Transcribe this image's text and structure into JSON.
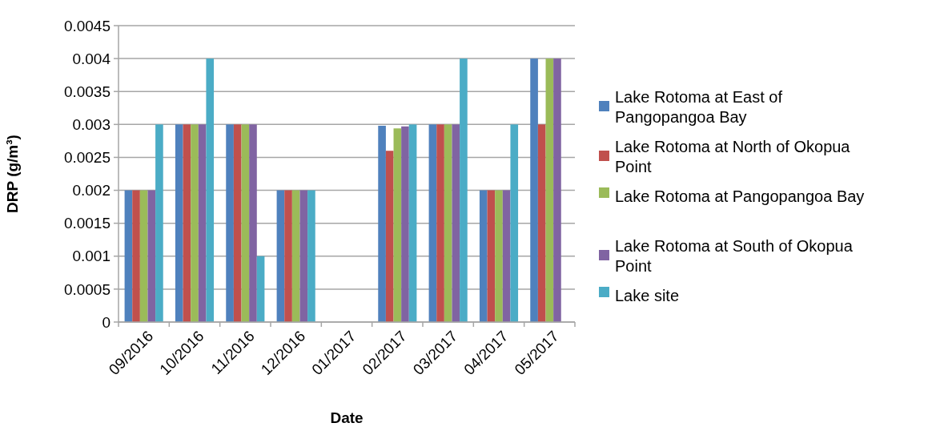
{
  "chart_data": {
    "type": "bar",
    "xlabel": "Date",
    "ylabel": "DRP (g/m³)",
    "categories": [
      "09/2016",
      "10/2016",
      "11/2016",
      "12/2016",
      "01/2017",
      "02/2017",
      "03/2017",
      "04/2017",
      "05/2017"
    ],
    "series": [
      {
        "name": "Lake Rotoma at East of Pangopangoa Bay",
        "color": "#4f81bd",
        "values": [
          0.002,
          0.003,
          0.003,
          0.002,
          null,
          0.00298,
          0.003,
          0.002,
          0.004
        ]
      },
      {
        "name": "Lake Rotoma at North of Okopua Point",
        "color": "#c0504d",
        "values": [
          0.002,
          0.003,
          0.003,
          0.002,
          null,
          0.0026,
          0.003,
          0.002,
          0.003
        ]
      },
      {
        "name": "Lake Rotoma at Pangopangoa Bay",
        "color": "#9bbb59",
        "values": [
          0.002,
          0.003,
          0.003,
          0.002,
          null,
          0.00294,
          0.003,
          0.002,
          0.004
        ]
      },
      {
        "name": "Lake Rotoma at South of Okopua Point",
        "color": "#8064a2",
        "values": [
          0.002,
          0.003,
          0.003,
          0.002,
          null,
          0.00297,
          0.003,
          0.002,
          0.004
        ]
      },
      {
        "name": "Lake site",
        "color": "#4bacc6",
        "values": [
          0.003,
          0.004,
          0.001,
          0.002,
          null,
          0.003,
          0.004,
          0.003,
          null
        ]
      }
    ],
    "ylim": [
      0,
      0.0045
    ],
    "yticks": [
      0,
      0.0005,
      0.001,
      0.0015,
      0.002,
      0.0025,
      0.003,
      0.0035,
      0.004,
      0.0045
    ],
    "grid": "y",
    "legend": "right"
  }
}
